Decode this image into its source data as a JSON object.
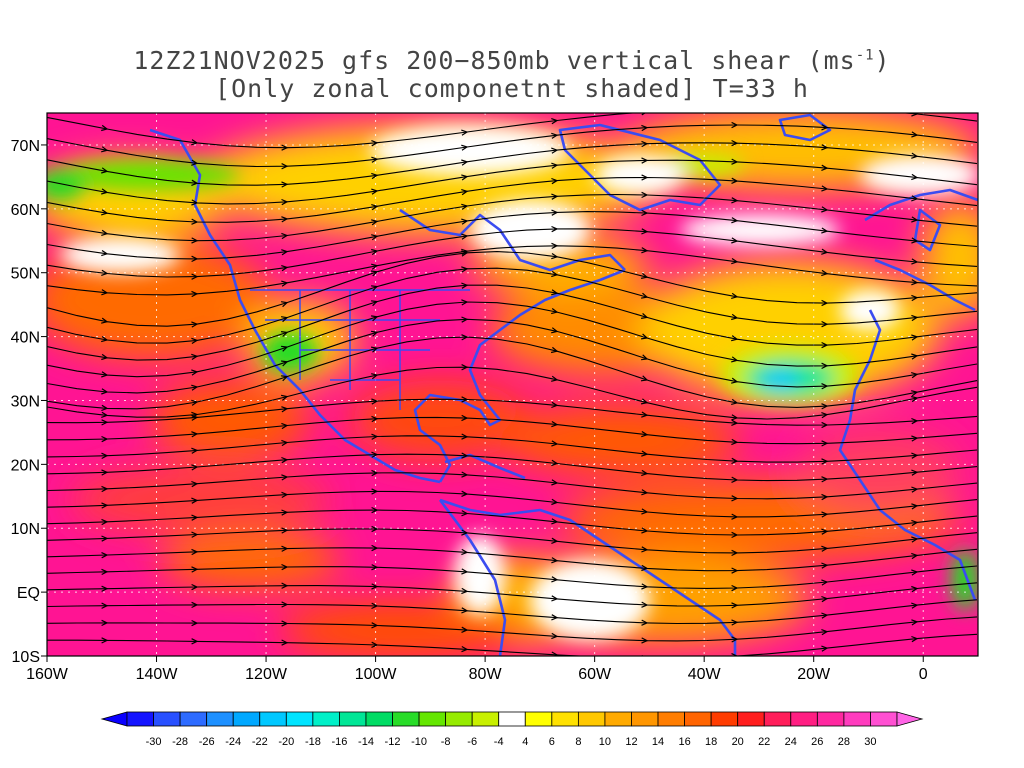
{
  "title": {
    "line1_text": "12Z21NOV2025 gfs 200−850mb vertical shear (ms",
    "line1_sup": "-1",
    "line1_end": ")",
    "line2": "[Only zonal componetnt shaded] T=33 h"
  },
  "map": {
    "lat_labels": [
      "70N",
      "60N",
      "50N",
      "40N",
      "30N",
      "20N",
      "10N",
      "EQ",
      "10S"
    ],
    "lon_labels": [
      "160W",
      "140W",
      "120W",
      "100W",
      "80W",
      "60W",
      "40W",
      "20W",
      "0"
    ],
    "lat_range": [
      -10,
      75
    ],
    "lon_range": [
      -160,
      10
    ],
    "coastline_color": "#3b4cf0",
    "streamline_color": "#000000",
    "grid_style": "white dotted"
  },
  "colorbar": {
    "labels": [
      "-30",
      "-28",
      "-26",
      "-24",
      "-22",
      "-20",
      "-18",
      "-16",
      "-14",
      "-12",
      "-10",
      "-8",
      "-6",
      "-4",
      "4",
      "6",
      "8",
      "10",
      "12",
      "14",
      "16",
      "18",
      "20",
      "22",
      "24",
      "26",
      "28",
      "30"
    ],
    "colors": [
      "#1414ff",
      "#2850ff",
      "#2d6bff",
      "#1e90ff",
      "#00a8ff",
      "#00c8ff",
      "#00e4ff",
      "#00f0c8",
      "#00e696",
      "#00dc64",
      "#28dc28",
      "#64e600",
      "#96eb00",
      "#c8f000",
      "#ffffff",
      "#ffff00",
      "#ffe100",
      "#ffc800",
      "#ffaa00",
      "#ff9600",
      "#ff7d00",
      "#ff6400",
      "#ff3c00",
      "#ff1e1e",
      "#ff1e5a",
      "#ff1e82",
      "#ff28a0",
      "#ff3cbe",
      "#ff50d2"
    ],
    "low_triangle_color": "#0a00ff",
    "high_triangle_color": "#ff64e6"
  }
}
